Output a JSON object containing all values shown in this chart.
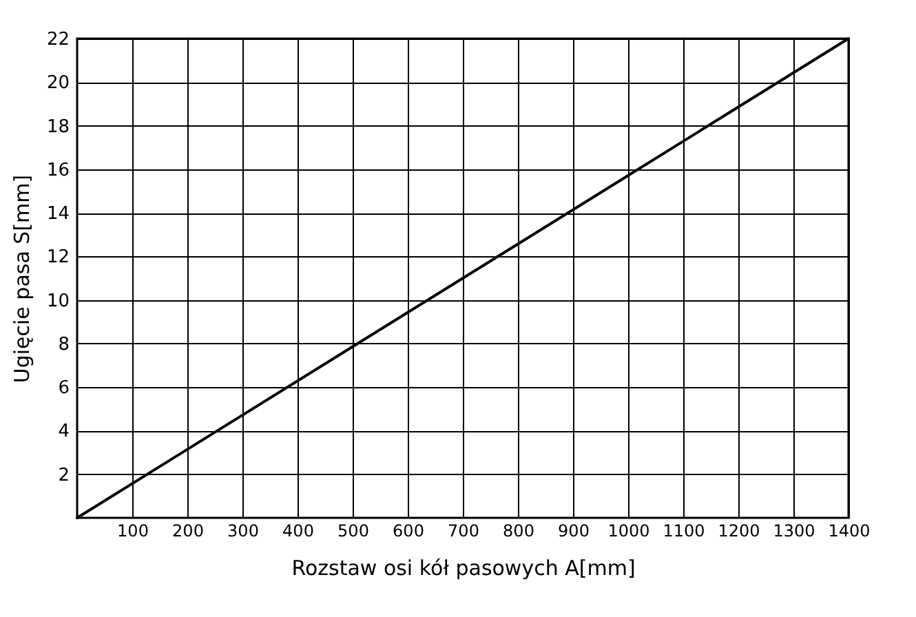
{
  "chart_data": {
    "type": "line",
    "xlabel": "Rozstaw osi kół pasowych A[mm]",
    "ylabel": "Ugięcie pasa S[mm]",
    "x": [
      0,
      1400
    ],
    "series": [
      {
        "color": "#000000",
        "values": [
          0,
          22
        ]
      }
    ],
    "xlim": [
      0,
      1400
    ],
    "xticks": [
      100,
      200,
      300,
      400,
      500,
      600,
      700,
      800,
      900,
      1000,
      1100,
      1200,
      1300,
      1400
    ],
    "ylim": [
      0,
      22
    ],
    "yticks": [
      2,
      4,
      6,
      8,
      10,
      12,
      14,
      16,
      18,
      20,
      22
    ],
    "grid": true,
    "marker": "none",
    "line_style": "solid"
  }
}
